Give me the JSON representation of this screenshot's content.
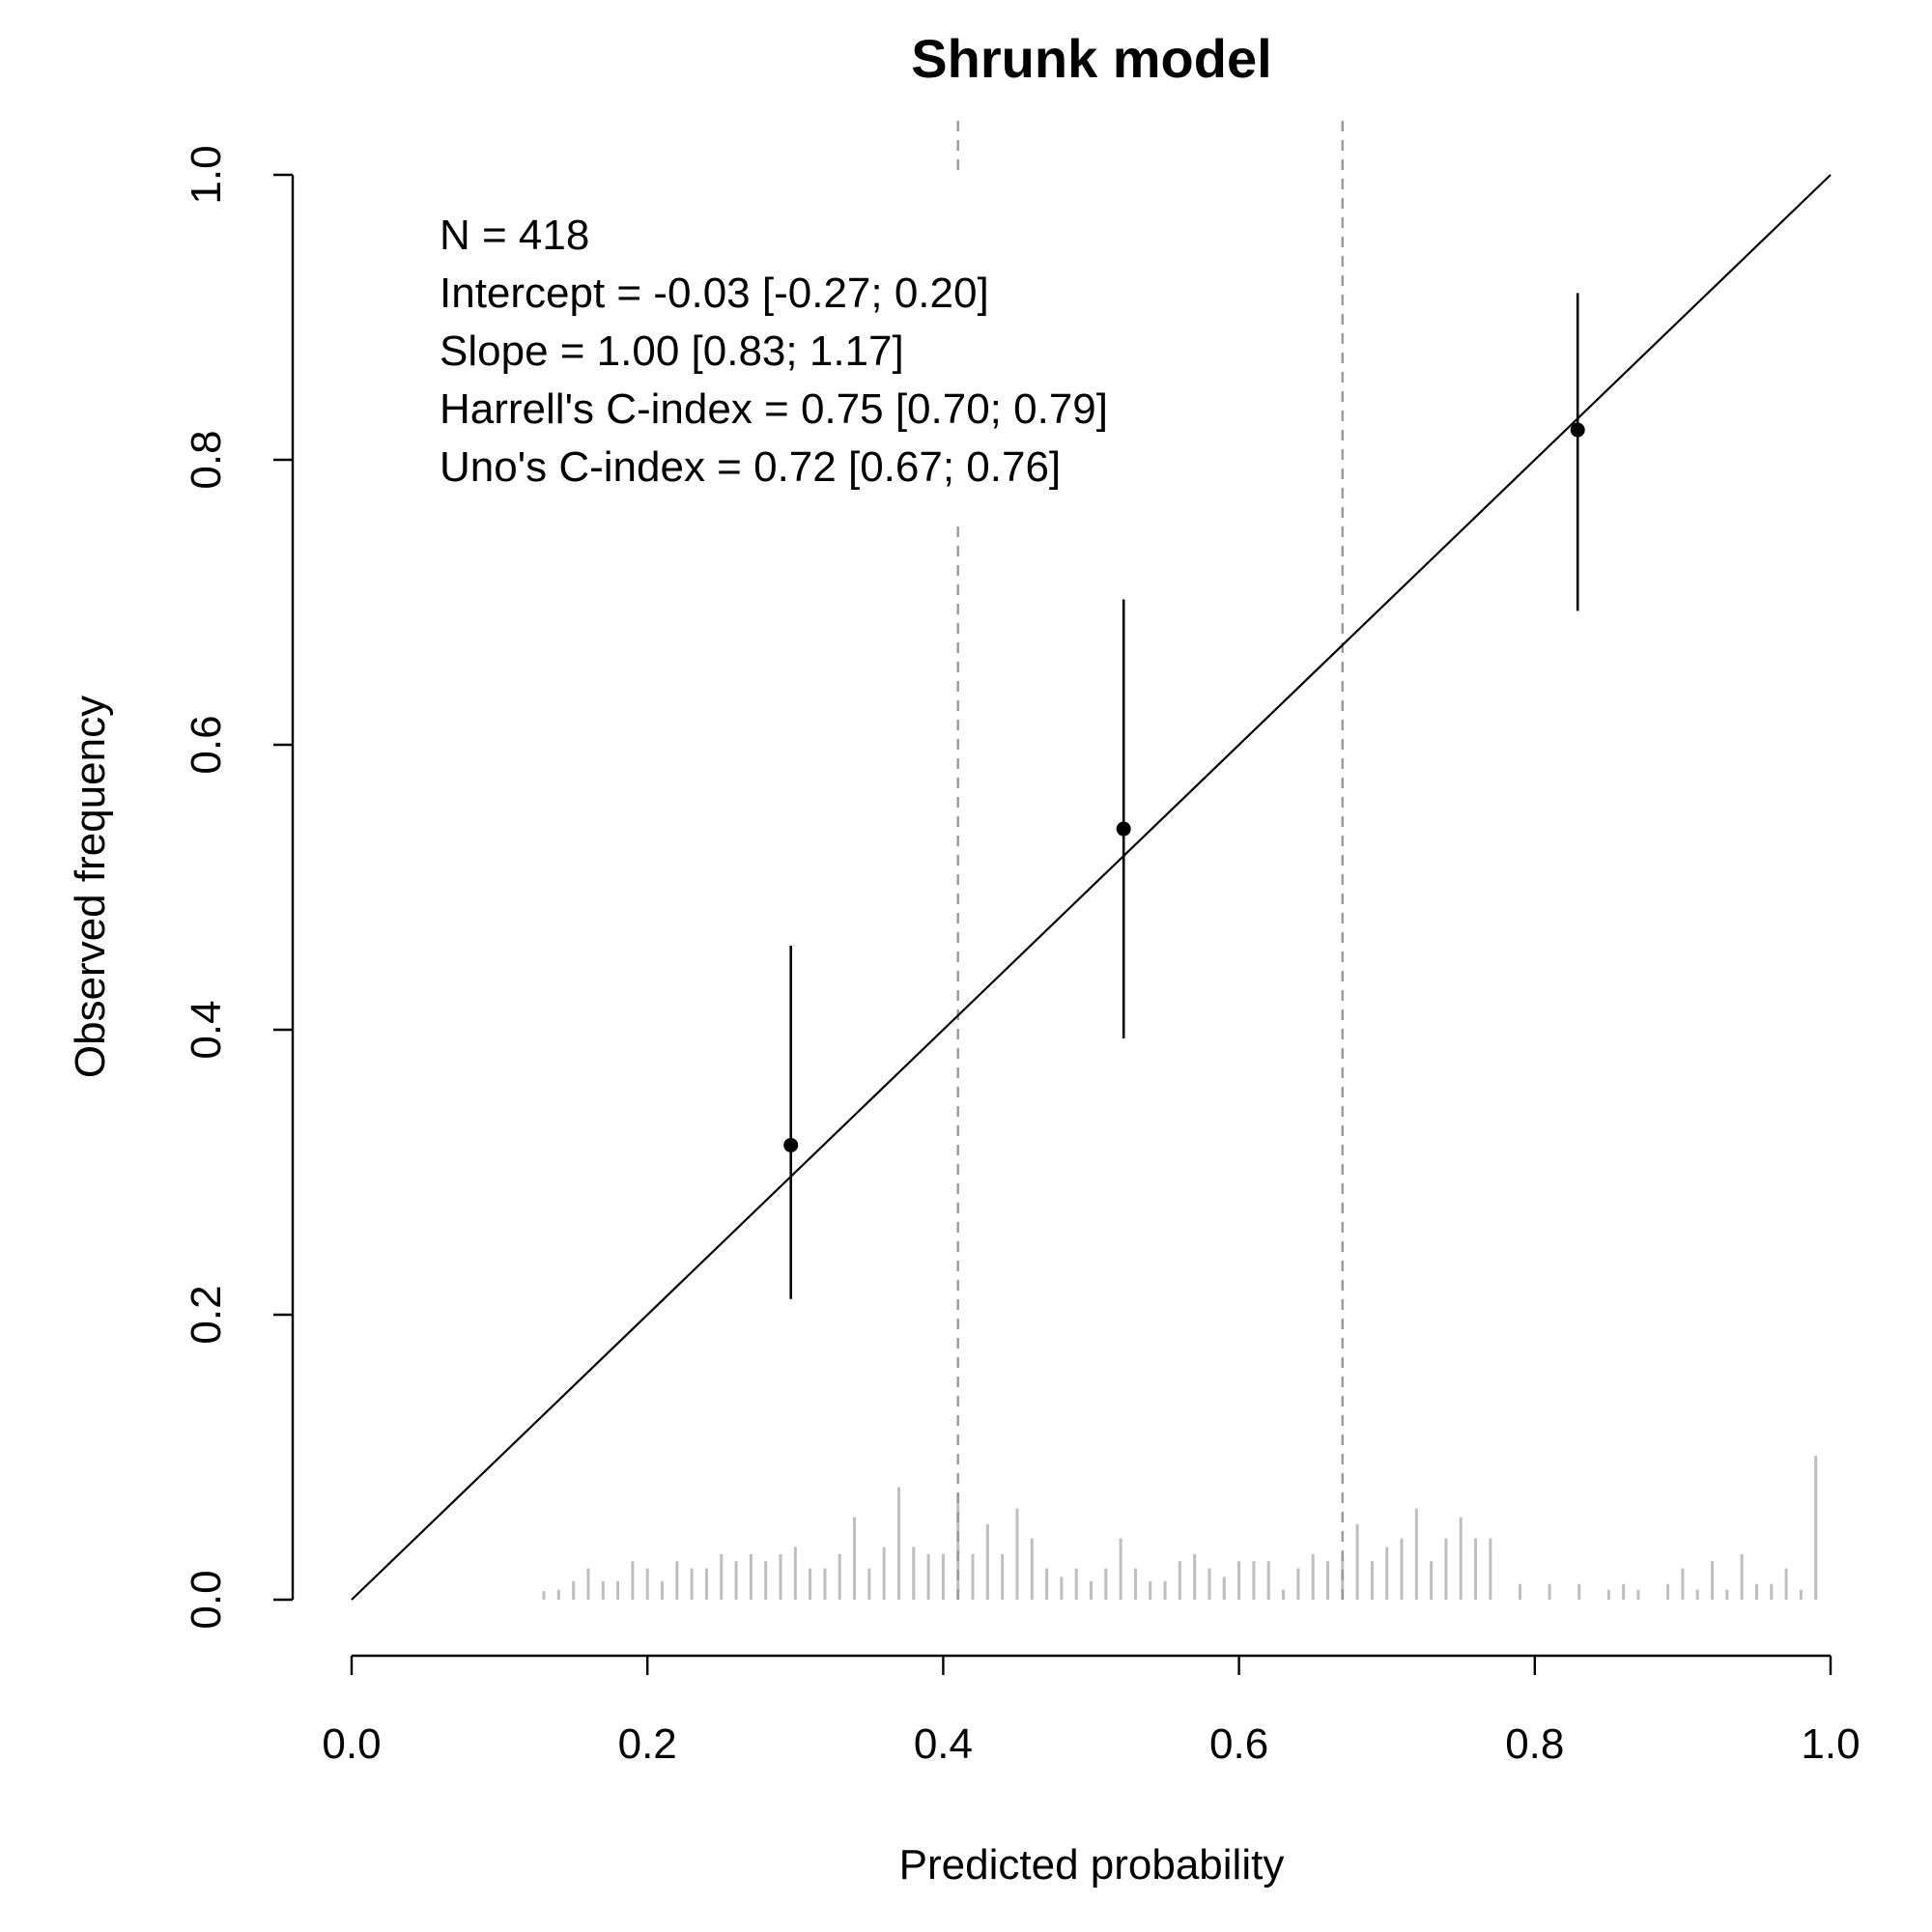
{
  "chart_data": {
    "type": "scatter",
    "title": "Shrunk model",
    "xlabel": "Predicted probability",
    "ylabel": "Observed frequency",
    "xlim": [
      0,
      1
    ],
    "ylim": [
      0,
      1
    ],
    "x_ticks": [
      "0.0",
      "0.2",
      "0.4",
      "0.6",
      "0.8",
      "1.0"
    ],
    "y_ticks": [
      "0.0",
      "0.2",
      "0.4",
      "0.6",
      "0.8",
      "1.0"
    ],
    "grid": false,
    "legend": "none",
    "annotations": [
      "N = 418",
      "Intercept = -0.03 [-0.27; 0.20]",
      "Slope = 1.00 [0.83; 1.17]",
      "Harrell's C-index = 0.75 [0.70; 0.79]",
      "Uno's C-index = 0.72 [0.67; 0.76]"
    ],
    "reference_line": {
      "from": [
        0,
        0
      ],
      "to": [
        1,
        1
      ]
    },
    "cutoffs": [
      0.41,
      0.67
    ],
    "points": [
      {
        "x": 0.297,
        "y": 0.319,
        "lower": 0.211,
        "upper": 0.459
      },
      {
        "x": 0.522,
        "y": 0.541,
        "lower": 0.394,
        "upper": 0.702
      },
      {
        "x": 0.829,
        "y": 0.821,
        "lower": 0.694,
        "upper": 0.917
      }
    ],
    "rug": {
      "x": [
        0.13,
        0.14,
        0.15,
        0.16,
        0.17,
        0.18,
        0.19,
        0.2,
        0.21,
        0.22,
        0.23,
        0.24,
        0.25,
        0.26,
        0.27,
        0.28,
        0.29,
        0.3,
        0.31,
        0.32,
        0.33,
        0.34,
        0.35,
        0.36,
        0.37,
        0.38,
        0.39,
        0.4,
        0.41,
        0.42,
        0.43,
        0.44,
        0.45,
        0.46,
        0.47,
        0.48,
        0.49,
        0.5,
        0.51,
        0.52,
        0.53,
        0.54,
        0.55,
        0.56,
        0.57,
        0.58,
        0.59,
        0.6,
        0.61,
        0.62,
        0.63,
        0.64,
        0.65,
        0.66,
        0.67,
        0.68,
        0.69,
        0.7,
        0.71,
        0.72,
        0.73,
        0.74,
        0.75,
        0.76,
        0.77,
        0.79,
        0.81,
        0.83,
        0.85,
        0.86,
        0.87,
        0.89,
        0.9,
        0.91,
        0.92,
        0.93,
        0.94,
        0.95,
        0.96,
        0.97,
        0.98,
        0.99
      ],
      "height": [
        0.006,
        0.007,
        0.013,
        0.022,
        0.013,
        0.013,
        0.027,
        0.022,
        0.013,
        0.027,
        0.022,
        0.022,
        0.032,
        0.027,
        0.032,
        0.027,
        0.032,
        0.037,
        0.022,
        0.022,
        0.032,
        0.058,
        0.022,
        0.037,
        0.079,
        0.037,
        0.032,
        0.032,
        0.074,
        0.032,
        0.053,
        0.032,
        0.064,
        0.043,
        0.022,
        0.016,
        0.022,
        0.013,
        0.022,
        0.043,
        0.022,
        0.013,
        0.013,
        0.027,
        0.032,
        0.022,
        0.016,
        0.027,
        0.027,
        0.027,
        0.007,
        0.022,
        0.032,
        0.027,
        0.032,
        0.053,
        0.027,
        0.037,
        0.043,
        0.064,
        0.027,
        0.043,
        0.058,
        0.043,
        0.043,
        0.011,
        0.011,
        0.011,
        0.007,
        0.011,
        0.007,
        0.011,
        0.022,
        0.007,
        0.027,
        0.007,
        0.032,
        0.011,
        0.011,
        0.022,
        0.007,
        0.101
      ]
    },
    "colors": {
      "foreground": "#000000",
      "cutoff": "#999999",
      "rug": "#bebebe"
    }
  }
}
